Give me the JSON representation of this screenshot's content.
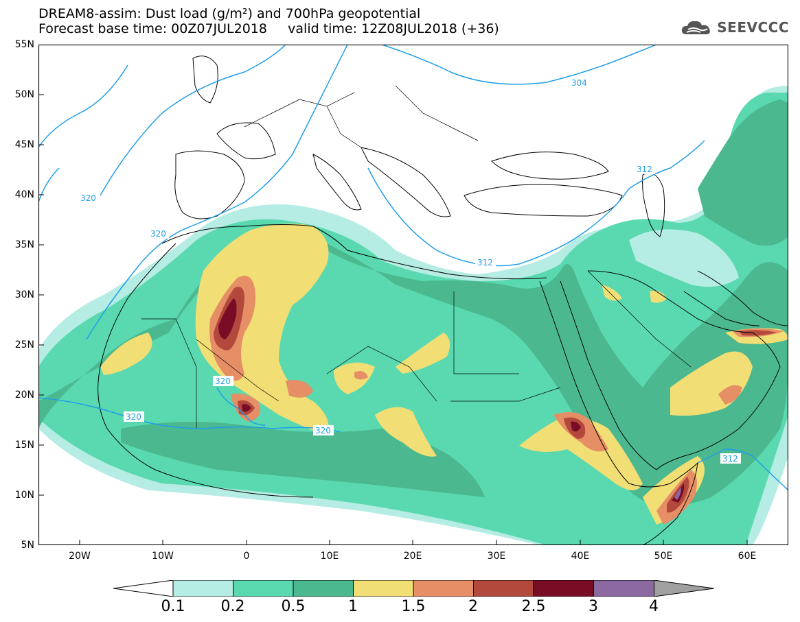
{
  "header": {
    "title_line1": "DREAM8-assim: Dust load (g/m²) and 700hPa geopotential",
    "title_line2": "Forecast base time: 00Z07JUL2018     valid time: 12Z08JUL2018 (+36)",
    "logo_text": "SEEVCCC"
  },
  "map": {
    "lat_labels": [
      "55N",
      "50N",
      "45N",
      "40N",
      "35N",
      "30N",
      "25N",
      "20N",
      "15N",
      "10N",
      "5N"
    ],
    "lon_labels": [
      "20W",
      "10W",
      "0",
      "10E",
      "20E",
      "30E",
      "40E",
      "50E",
      "60E"
    ],
    "contours": [
      {
        "label": "304"
      },
      {
        "label": "312"
      },
      {
        "label": "312"
      },
      {
        "label": "312"
      },
      {
        "label": "320"
      },
      {
        "label": "320"
      },
      {
        "label": "320"
      },
      {
        "label": "320"
      },
      {
        "label": "320"
      }
    ],
    "contour_color": "#1f9ee8"
  },
  "legend": {
    "levels": [
      "0.1",
      "0.2",
      "0.5",
      "1",
      "1.5",
      "2",
      "2.5",
      "3",
      "4"
    ],
    "colors": [
      "#ffffff",
      "#b5ece3",
      "#5ad9b0",
      "#4cb88f",
      "#f1de74",
      "#e68e65",
      "#b3493d",
      "#7a0d26",
      "#8a6aa1",
      "#a0a0a0"
    ]
  }
}
